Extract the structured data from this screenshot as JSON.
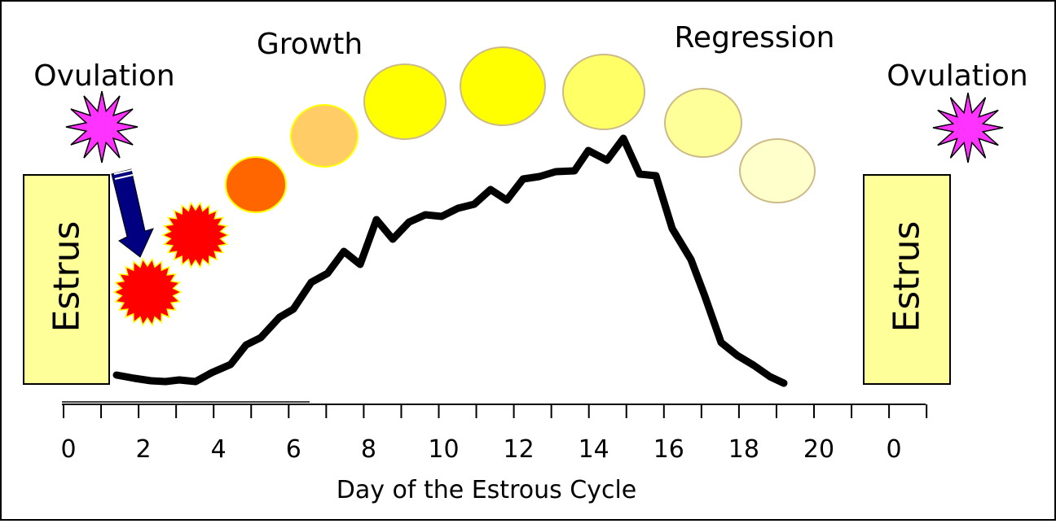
{
  "labels": {
    "ovulation_left": "Ovulation",
    "ovulation_right": "Ovulation",
    "growth": "Growth",
    "regression": "Regression",
    "estrus_left": "Estrus",
    "estrus_right": "Estrus",
    "x_axis_title": "Day of the Estrous Cycle"
  },
  "x_ticks": [
    "0",
    "2",
    "4",
    "6",
    "8",
    "10",
    "12",
    "14",
    "16",
    "18",
    "20",
    "0"
  ],
  "colors": {
    "ovulation_star": "#ff33ff",
    "estrus_box": "#ffff99",
    "early_follicle": "#ff0000",
    "follicle_stages": [
      "#ff6600",
      "#ffcc66",
      "#ffff00",
      "#ffff00",
      "#ffff66",
      "#ffff99",
      "#ffffcc"
    ],
    "arrow": "#000080",
    "curve": "#000000"
  },
  "icons": {
    "ovulation": "burst-star-icon",
    "arrow": "down-arrow-icon",
    "early_follicle": "spiky-follicle-icon",
    "follicle": "oval-follicle-icon"
  }
}
